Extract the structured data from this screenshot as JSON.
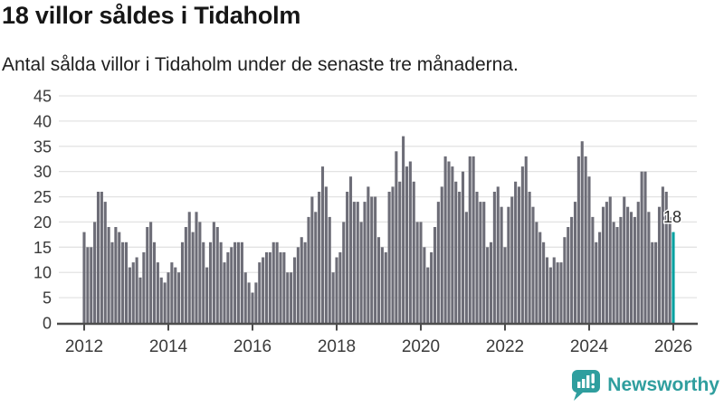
{
  "header": {
    "title": "18 villor såldes i Tidaholm",
    "subtitle": "Antal sålda villor i Tidaholm under de senaste tre månaderna."
  },
  "chart_data": {
    "type": "bar",
    "title": "18 villor såldes i Tidaholm",
    "subtitle": "Antal sålda villor i Tidaholm under de senaste tre månaderna.",
    "x_start": "2012-01",
    "x_tick_labels": [
      "2012",
      "2014",
      "2016",
      "2018",
      "2020",
      "2022",
      "2024",
      "2026"
    ],
    "y_ticks": [
      0,
      5,
      10,
      15,
      20,
      25,
      30,
      35,
      40,
      45
    ],
    "ylim": [
      0,
      45
    ],
    "grid": true,
    "legend": "none",
    "series": [
      {
        "name": "Antal sålda villor i Tidaholm under de senaste tre månaderna",
        "values": [
          18,
          15,
          15,
          20,
          26,
          26,
          24,
          19,
          16,
          19,
          18,
          16,
          16,
          11,
          12,
          13,
          9,
          14,
          19,
          20,
          16,
          12,
          9,
          8,
          10,
          12,
          11,
          10,
          16,
          19,
          22,
          18,
          22,
          20,
          16,
          11,
          16,
          20,
          19,
          16,
          12,
          14,
          15,
          16,
          16,
          16,
          10,
          8,
          6,
          8,
          12,
          13,
          14,
          14,
          16,
          16,
          14,
          14,
          10,
          10,
          13,
          15,
          17,
          16,
          21,
          25,
          22,
          26,
          31,
          27,
          21,
          10,
          13,
          14,
          20,
          26,
          29,
          24,
          24,
          20,
          24,
          27,
          25,
          25,
          17,
          15,
          14,
          26,
          27,
          34,
          28,
          37,
          31,
          32,
          28,
          20,
          20,
          15,
          11,
          14,
          19,
          24,
          27,
          33,
          32,
          31,
          28,
          26,
          30,
          22,
          33,
          33,
          26,
          24,
          24,
          15,
          16,
          26,
          27,
          23,
          15,
          23,
          25,
          28,
          27,
          31,
          33,
          26,
          23,
          20,
          18,
          16,
          13,
          11,
          13,
          12,
          12,
          17,
          19,
          21,
          24,
          33,
          36,
          33,
          29,
          21,
          16,
          18,
          23,
          24,
          25,
          20,
          19,
          21,
          25,
          23,
          22,
          21,
          24,
          30,
          30,
          22,
          16,
          16,
          23,
          27,
          26,
          21,
          18
        ]
      }
    ],
    "highlight": {
      "index": 168,
      "value": 18,
      "label": "18"
    },
    "colors": {
      "bar": "#6d6d77",
      "highlight": "#00a0a0",
      "grid": "#e3e3e3",
      "axis": "#4d4d4d",
      "tick_text": "#3a3a3a",
      "annotation_text": "#2c2c2c"
    }
  },
  "branding": {
    "name": "Newsworthy",
    "color": "#2f9e9e",
    "icon": "newsworthy-chart-bubble-icon"
  }
}
